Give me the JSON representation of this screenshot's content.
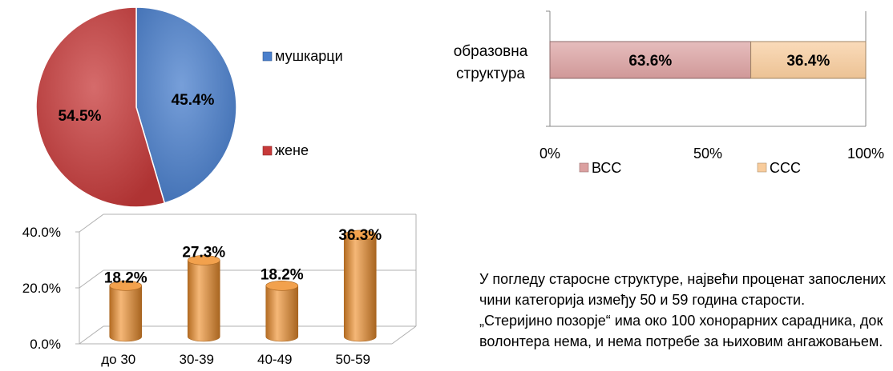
{
  "chart_data": [
    {
      "type": "pie",
      "series": [
        {
          "name": "мушкарци",
          "value": 45.4,
          "label": "45.4%",
          "color": "#4a7fcc"
        },
        {
          "name": "жене",
          "value": 54.5,
          "label": "54.5%",
          "color": "#c73a3a"
        }
      ],
      "legend": [
        "мушкарци",
        "жене"
      ],
      "legend_position": "right"
    },
    {
      "type": "bar",
      "orientation": "horizontal",
      "stacked": true,
      "categories": [
        "образовна\nструктура"
      ],
      "category_lines": [
        "образовна",
        "структура"
      ],
      "series": [
        {
          "name": "ВСС",
          "values": [
            63.6
          ],
          "label": "63.6%",
          "color": "#dba0a0"
        },
        {
          "name": "ССС",
          "values": [
            36.4
          ],
          "label": "36.4%",
          "color": "#f8cc9c"
        }
      ],
      "xlim": [
        0,
        100
      ],
      "xticks": [
        "0%",
        "50%",
        "100%"
      ],
      "legend_position": "bottom"
    },
    {
      "type": "bar",
      "style": "3d-cylinder",
      "categories": [
        "до 30",
        "30-39",
        "40-49",
        "50-59"
      ],
      "values": [
        18.2,
        27.3,
        18.2,
        36.3
      ],
      "labels": [
        "18.2%",
        "27.3%",
        "18.2%",
        "36.3%"
      ],
      "ylim": [
        0,
        40
      ],
      "yticks": [
        "0.0%",
        "20.0%",
        "40.0%"
      ],
      "color": "#f0902e",
      "grid": true
    }
  ],
  "text": {
    "paragraph_1": "У погледу старосне структуре, највећи проценат запослених чини категорија између 50 и 59 година старости.",
    "paragraph_2": "„Стеријино позорје“ има око 100 хонорарних сарадника, док волонтера нема, и нема потребе за њиховим ангажовањем."
  }
}
